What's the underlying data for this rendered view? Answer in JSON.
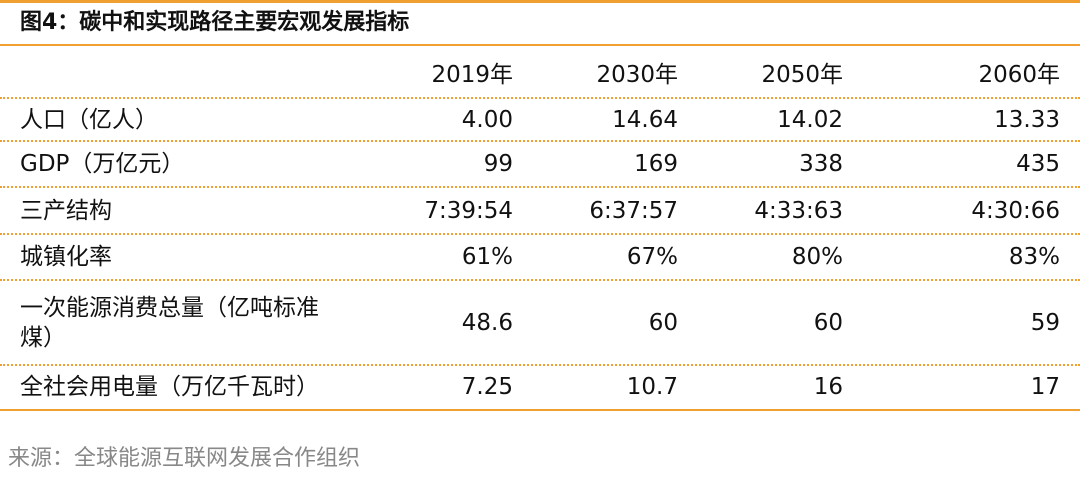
{
  "header": {
    "title": "图4：碳中和实现路径主要宏观发展指标"
  },
  "table": {
    "columns": [
      "2019年",
      "2030年",
      "2050年",
      "2060年"
    ],
    "rows": [
      [
        "人口（亿人）",
        "4.00",
        "14.64",
        "14.02",
        "13.33"
      ],
      [
        "GDP（万亿元）",
        "99",
        "169",
        "338",
        "435"
      ],
      [
        "三产结构",
        "7:39:54",
        "6:37:57",
        "4:33:63",
        "4:30:66"
      ],
      [
        "城镇化率",
        "61%",
        "67%",
        "80%",
        "83%"
      ],
      [
        "一次能源消费总量（亿吨标准煤）",
        "48.6",
        "60",
        "60",
        "59"
      ],
      [
        "全社会用电量（万亿千瓦时）",
        "7.25",
        "10.7",
        "16",
        "17"
      ]
    ]
  },
  "footer": {
    "source": "来源：全球能源互联网发展合作组织"
  }
}
